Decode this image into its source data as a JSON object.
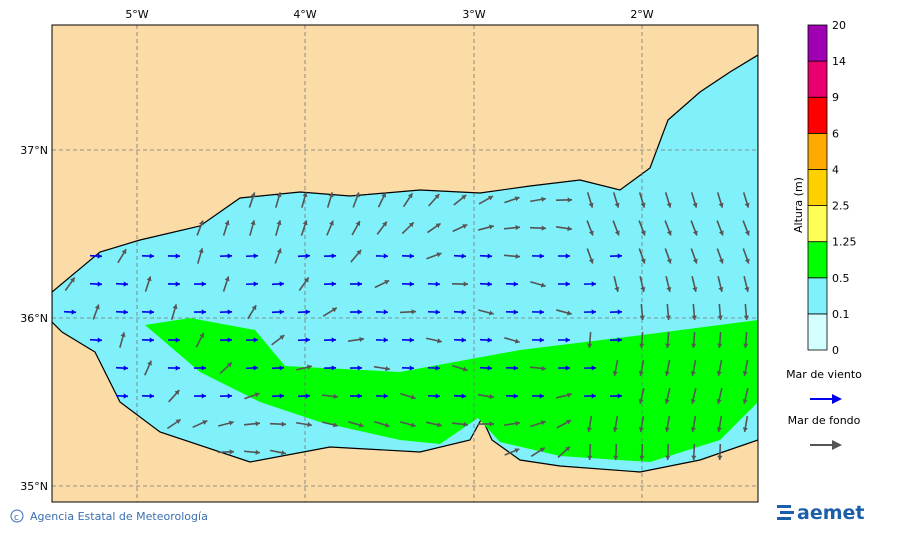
{
  "map": {
    "lon_labels": [
      "5°W",
      "4°W",
      "3°W",
      "2°W"
    ],
    "lat_labels": [
      "37°N",
      "36°N",
      "35°N"
    ]
  },
  "colorbar": {
    "title": "Altura (m)",
    "levels": [
      0,
      0.1,
      0.5,
      1.25,
      2.5,
      4,
      6,
      9,
      14,
      20
    ],
    "colors": [
      "#d4ffff",
      "#80f0fa",
      "#00ff00",
      "#ffff55",
      "#ffd000",
      "#ffaa00",
      "#ff0000",
      "#e8006e",
      "#a000b4"
    ]
  },
  "legend": [
    {
      "label": "Mar de viento",
      "color": "#0000ee"
    },
    {
      "label": "Mar de fondo",
      "color": "#555555"
    }
  ],
  "footer": {
    "credit": "Agencia Estatal de Meteorología",
    "logo": "aemet"
  }
}
